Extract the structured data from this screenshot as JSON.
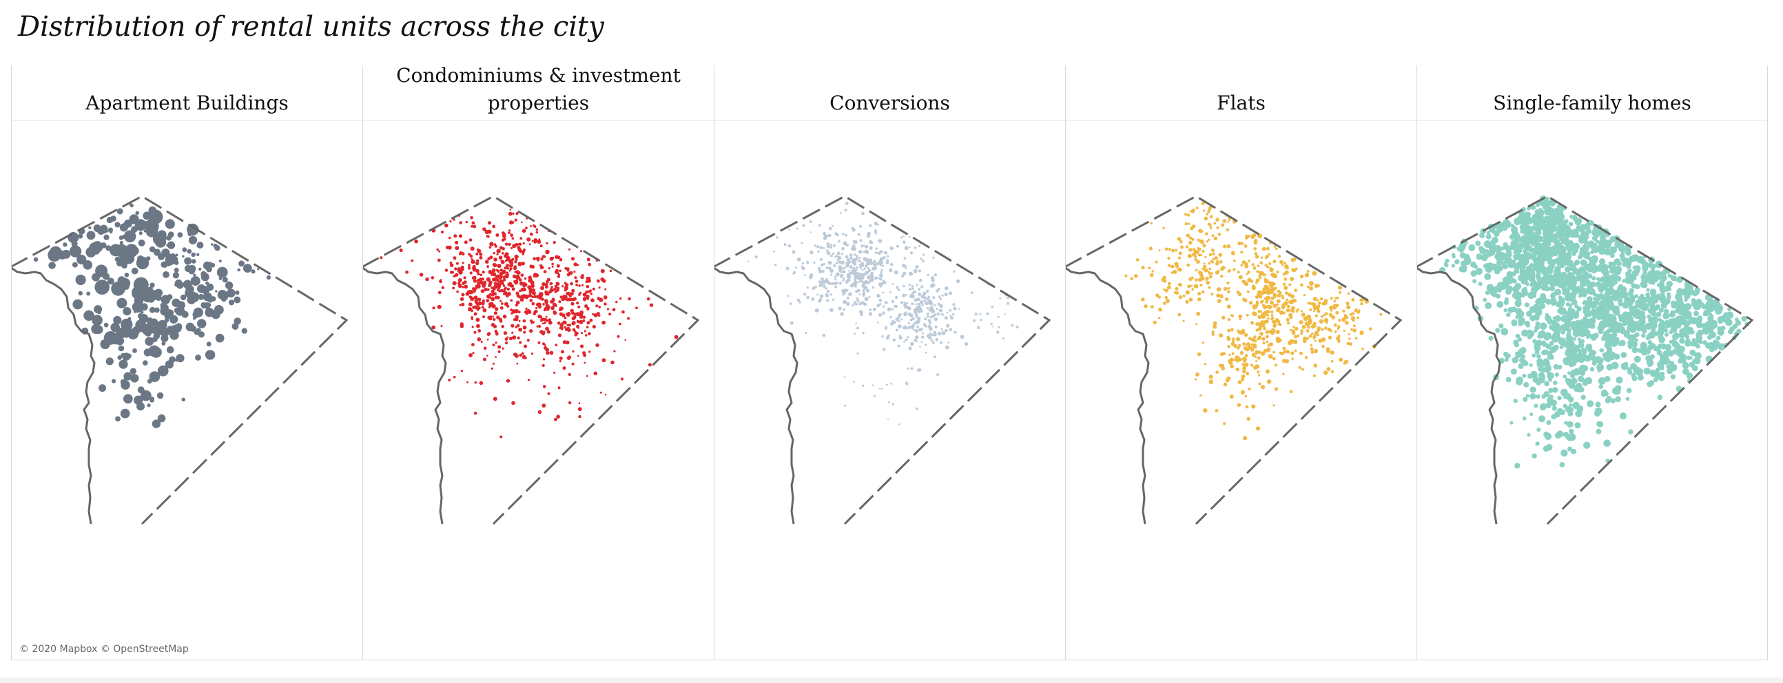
{
  "title": "Distribution of rental units across the city",
  "attribution": "© 2020 Mapbox © OpenStreetMap",
  "panels": [
    {
      "label": "Apartment Buildings",
      "color": "#6b7785"
    },
    {
      "label": "Condominiums & investment properties",
      "color": "#e0262d"
    },
    {
      "label": "Conversions",
      "color": "#bdcbd9"
    },
    {
      "label": "Flats",
      "color": "#f0b944"
    },
    {
      "label": "Single-family homes",
      "color": "#8ad1c3"
    }
  ],
  "boundary_color": "#666666"
}
